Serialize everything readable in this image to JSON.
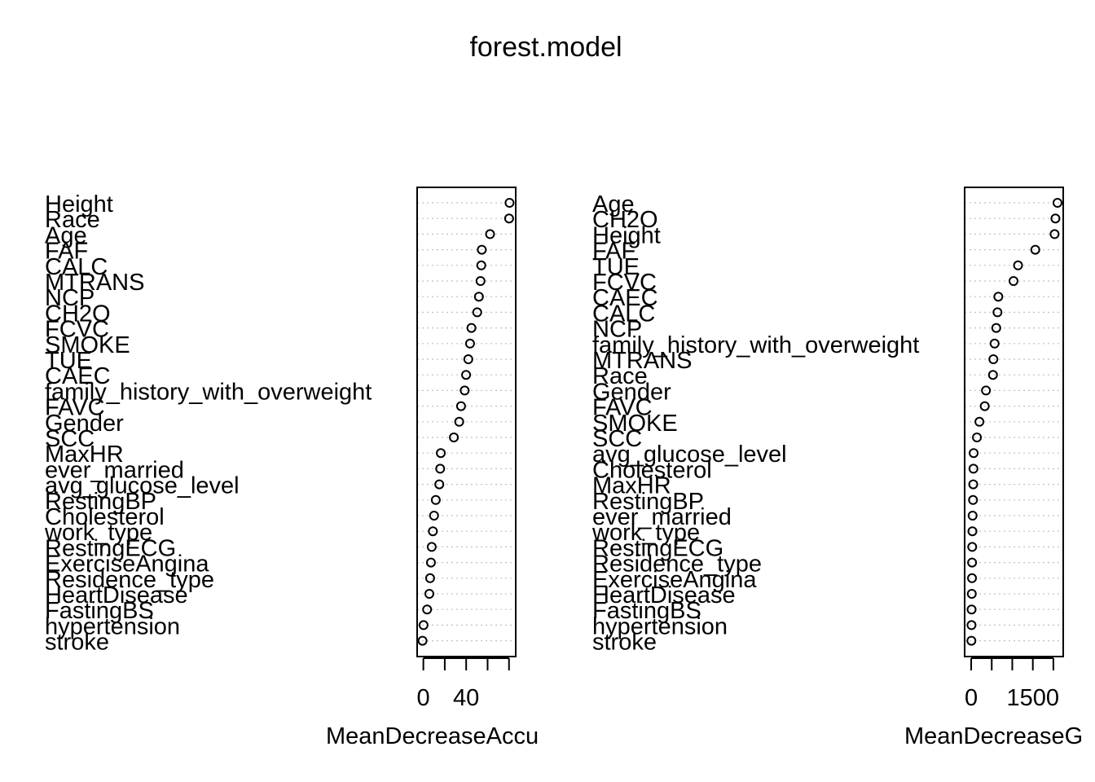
{
  "title": "forest.model",
  "chart_data": [
    {
      "type": "dotchart",
      "xlabel": "MeanDecreaseAccuracy",
      "xlabel_visible": "MeanDecreaseAccu",
      "ticks": [
        0,
        20,
        40,
        60,
        80
      ],
      "tick_labels_shown": [
        "0",
        "40"
      ],
      "xlim": [
        -2,
        84
      ],
      "grid": true,
      "labels": [
        "Height",
        "Race",
        "Age",
        "FAF",
        "CALC",
        "MTRANS",
        "NCP",
        "CH2O",
        "FCVC",
        "SMOKE",
        "TUE",
        "CAEC",
        "family_history_with_overweight",
        "FAVC",
        "Gender",
        "SCC",
        "MaxHR",
        "ever_married",
        "avg_glucose_level",
        "RestingBP",
        "Cholesterol",
        "work_type",
        "RestingECG",
        "ExerciseAngina",
        "Residence_type",
        "HeartDisease",
        "FastingBS",
        "hypertension",
        "stroke"
      ],
      "values": [
        80.5,
        80.1,
        62.3,
        54.6,
        54.1,
        53.4,
        51.9,
        50.3,
        44.9,
        43.6,
        42.0,
        39.9,
        38.6,
        35.2,
        33.5,
        28.5,
        16.3,
        15.7,
        14.9,
        11.6,
        10.0,
        8.9,
        7.8,
        7.1,
        6.3,
        5.6,
        3.5,
        0.2,
        -0.8
      ]
    },
    {
      "type": "dotchart",
      "xlabel": "MeanDecreaseGini",
      "xlabel_visible": "MeanDecreaseG",
      "ticks": [
        0,
        500,
        1000,
        1500,
        2000
      ],
      "tick_labels_shown": [
        "0",
        "1500"
      ],
      "xlim": [
        -60,
        2180
      ],
      "grid": true,
      "labels": [
        "Age",
        "CH2O",
        "Height",
        "FAF",
        "TUE",
        "FCVC",
        "CAEC",
        "CALC",
        "NCP",
        "family_history_with_overweight",
        "MTRANS",
        "Race",
        "Gender",
        "FAVC",
        "SMOKE",
        "SCC",
        "avg_glucose_level",
        "Cholesterol",
        "MaxHR",
        "RestingBP",
        "ever_married",
        "work_type",
        "RestingECG",
        "Residence_type",
        "ExerciseAngina",
        "HeartDisease",
        "FastingBS",
        "hypertension",
        "stroke"
      ],
      "values": [
        2100,
        2050,
        2030,
        1560,
        1140,
        1030,
        660,
        640,
        610,
        570,
        540,
        530,
        360,
        330,
        200,
        140,
        60,
        55,
        50,
        45,
        35,
        30,
        25,
        22,
        20,
        15,
        10,
        8,
        5
      ]
    }
  ]
}
